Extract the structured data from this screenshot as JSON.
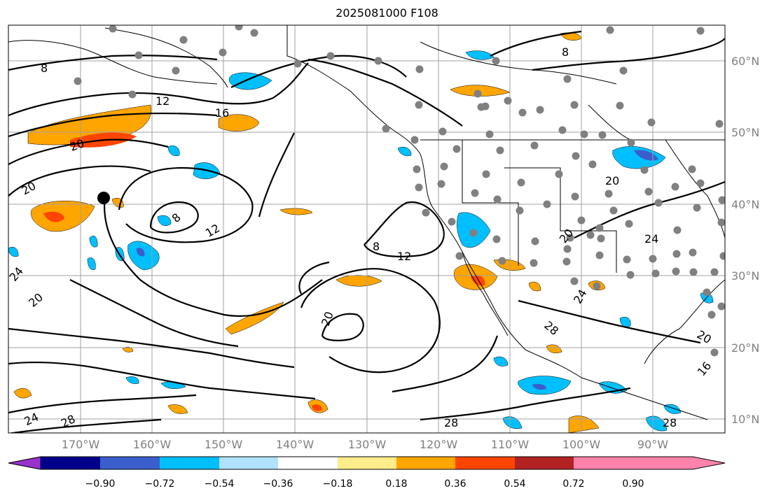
{
  "title": "2025081000 F108",
  "lat_labels": [
    "60°N",
    "50°N",
    "40°N",
    "30°N",
    "20°N",
    "10°N"
  ],
  "lon_labels": [
    "170°W",
    "160°W",
    "150°W",
    "140°W",
    "130°W",
    "120°W",
    "110°W",
    "100°W",
    "90°W"
  ],
  "contour_labels": [
    "8",
    "12",
    "16",
    "20",
    "8",
    "12",
    "20",
    "24",
    "20",
    "8",
    "12",
    "20",
    "28",
    "24",
    "28",
    "20",
    "24",
    "20",
    "16",
    "28",
    "8",
    "20",
    "24",
    "28"
  ],
  "colorbar": {
    "tick_labels": [
      "−0.90",
      "−0.72",
      "−0.54",
      "−0.36",
      "−0.18",
      "0.18",
      "0.36",
      "0.54",
      "0.72",
      "0.90"
    ],
    "colors": [
      "#9932cc",
      "#00008b",
      "#3a5fcd",
      "#00bfff",
      "#b0e2ff",
      "#ffffff",
      "#ffec8b",
      "#ffa500",
      "#ff4500",
      "#b22222",
      "#ff82ab"
    ]
  },
  "legend": {
    "station_marker_color": "#808080",
    "highlight_marker_color": "#000000"
  }
}
